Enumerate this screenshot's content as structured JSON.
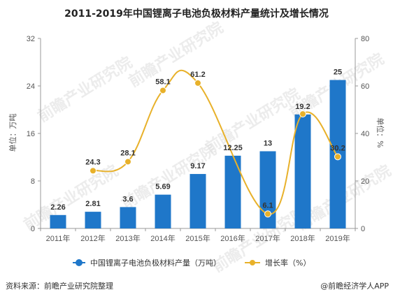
{
  "chart_data": {
    "type": "bar",
    "title": "2011-2019年中国锂离子电池负极材料产量统计及增长情况",
    "categories": [
      "2011年",
      "2012年",
      "2013年",
      "2014年",
      "2015年",
      "2016年",
      "2017年",
      "2018年",
      "2019年"
    ],
    "ylabel_left": "单位：万吨",
    "ylabel_right": "单位：%",
    "ylim_left": [
      0,
      32
    ],
    "yticks_left": [
      "0",
      "8",
      "16",
      "24",
      "32"
    ],
    "ylim_right": [
      0,
      80
    ],
    "yticks_right": [
      "0",
      "20",
      "40",
      "60",
      "80"
    ],
    "grid": false,
    "legend_position": "bottom",
    "series": [
      {
        "name": "中国锂离子电池负极材料产量（万吨）",
        "type": "bar",
        "axis": "left",
        "color": "#1f77c9",
        "values": [
          2.26,
          2.81,
          3.6,
          5.69,
          9.17,
          12.25,
          13,
          19.2,
          25
        ],
        "labels": [
          "2.26",
          "2.81",
          "3.6",
          "5.69",
          "9.17",
          "12.25",
          "13",
          "19.2",
          "25"
        ]
      },
      {
        "name": "增长率（%）",
        "type": "line",
        "axis": "right",
        "color": "#e8b12a",
        "values": [
          null,
          24.3,
          28.1,
          58.1,
          61.2,
          null,
          6.1,
          48.2,
          30.2
        ],
        "labels": [
          "",
          "24.3",
          "28.1",
          "58.1",
          "61.2",
          "",
          "6.1",
          "",
          "30.2"
        ]
      }
    ]
  },
  "footer": {
    "source": "资料来源：前瞻产业研究院整理",
    "brand": "@前瞻经济学人APP"
  },
  "watermark": "前瞻产业研究院"
}
